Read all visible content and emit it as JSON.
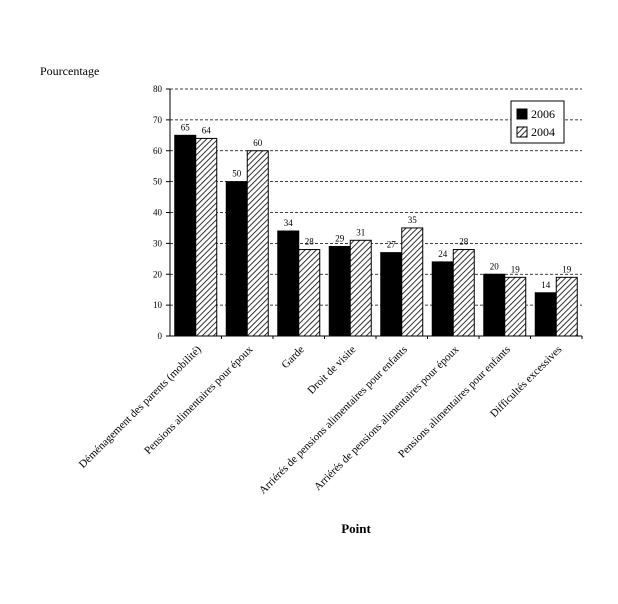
{
  "chart_data": {
    "type": "bar",
    "title": "",
    "ylabel": "Pourcentage",
    "xlabel": "Point",
    "ylim": [
      0,
      80
    ],
    "yticks": [
      0,
      10,
      20,
      30,
      40,
      50,
      60,
      70,
      80
    ],
    "grid": true,
    "legend_position": "top-right",
    "categories": [
      "Déménagement des parents (mobilité)",
      "Pensions alimentaires pour époux",
      "Garde",
      "Droit de visite",
      "Arriérés de pensions alimentaires pour enfants",
      "Arriérés de pensions alimentaires pour époux",
      "Pensions alimentaires pour enfants",
      "Difficultés excessives"
    ],
    "series": [
      {
        "name": "2006",
        "color": "#000000",
        "pattern": "solid",
        "values": [
          65,
          50,
          34,
          29,
          27,
          24,
          20,
          14
        ]
      },
      {
        "name": "2004",
        "color": "#000000",
        "pattern": "diagonal-hatch",
        "values": [
          64,
          60,
          28,
          31,
          35,
          28,
          19,
          19
        ]
      }
    ]
  }
}
